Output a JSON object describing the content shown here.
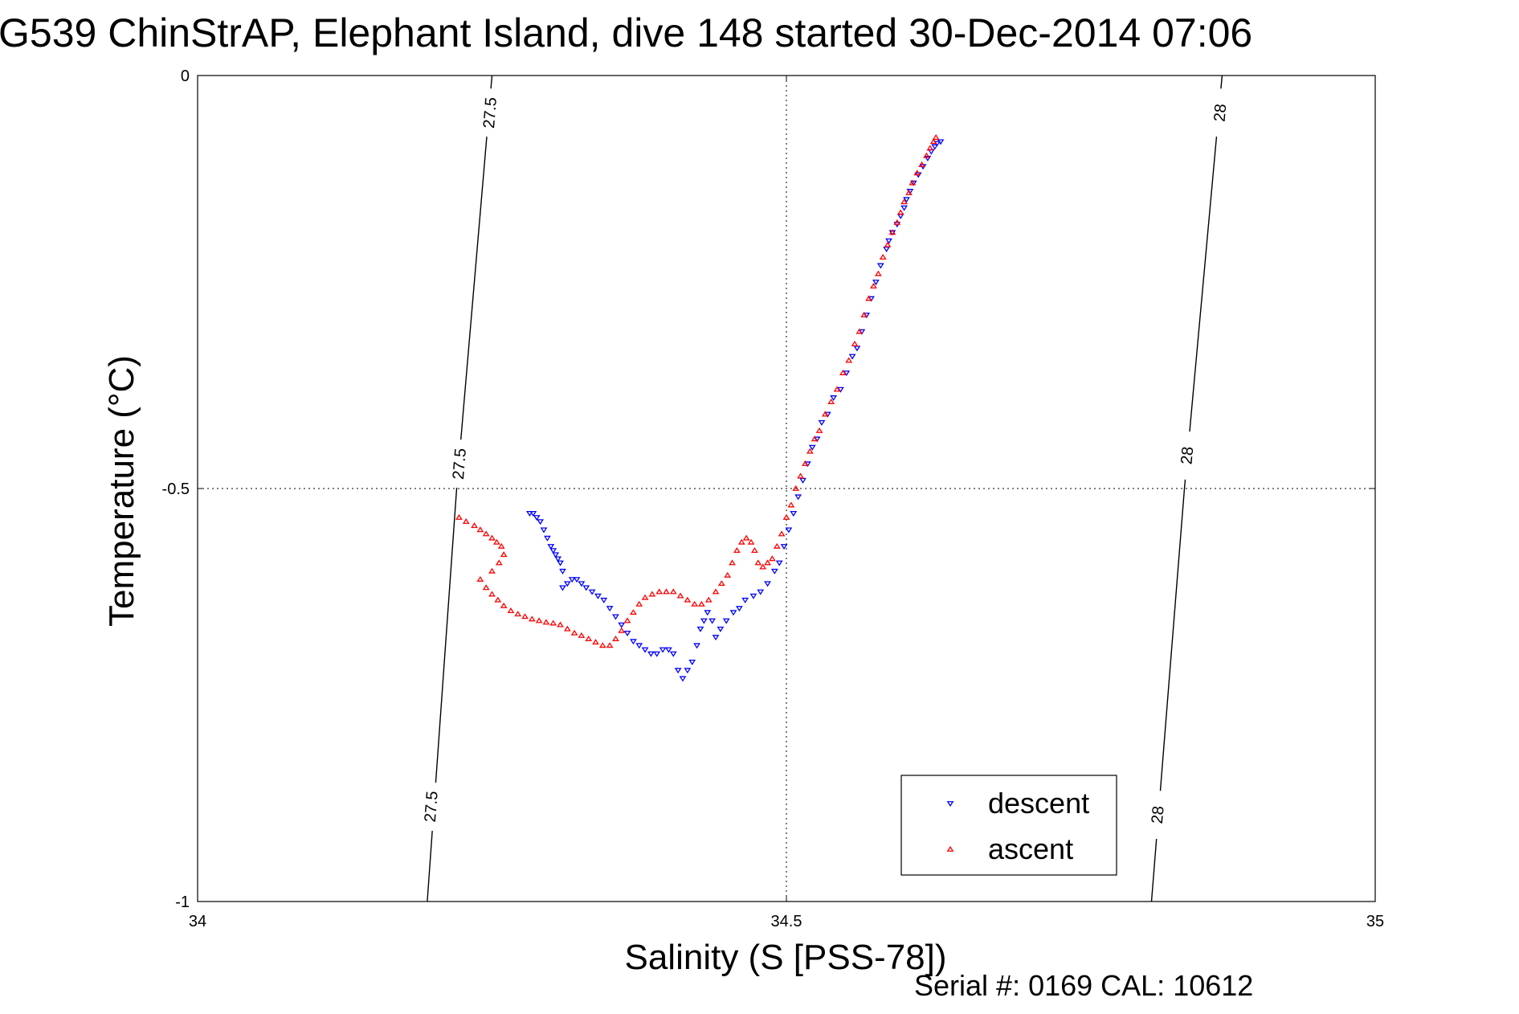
{
  "title": "G539 ChinStrAP, Elephant Island, dive 148 started 30-Dec-2014 07:06",
  "footer": "Serial #: 0169 CAL: 10612",
  "chart_data": {
    "type": "scatter",
    "title": "G539 ChinStrAP, Elephant Island, dive 148 started 30-Dec-2014 07:06",
    "xlabel": "Salinity (S [PSS-78])",
    "ylabel": "Temperature (°C)",
    "xlim": [
      34,
      35
    ],
    "ylim": [
      -1,
      0
    ],
    "x_ticks": [
      34,
      34.5,
      35
    ],
    "x_tick_labels": [
      "34",
      "34.5",
      "35"
    ],
    "y_ticks": [
      0,
      -0.5,
      -1
    ],
    "y_tick_labels": [
      "0",
      "-0.5",
      "-1"
    ],
    "grid": true,
    "legend_position": "bottom-right",
    "density_contours": [
      {
        "label": "27.5",
        "points": [
          [
            34.25,
            0
          ],
          [
            34.22,
            -0.5
          ],
          [
            34.195,
            -1
          ]
        ],
        "label_positions": [
          [
            34.248,
            -0.045
          ],
          [
            34.222,
            -0.47
          ],
          [
            34.198,
            -0.885
          ]
        ]
      },
      {
        "label": "28",
        "points": [
          [
            34.87,
            0
          ],
          [
            34.838,
            -0.5
          ],
          [
            34.81,
            -1
          ]
        ],
        "label_positions": [
          [
            34.868,
            -0.045
          ],
          [
            34.84,
            -0.46
          ],
          [
            34.815,
            -0.895
          ]
        ]
      }
    ],
    "series": [
      {
        "name": "descent",
        "color": "#0000ff",
        "marker": "triangle-down",
        "points": [
          [
            34.631,
            -0.08
          ],
          [
            34.628,
            -0.082
          ],
          [
            34.626,
            -0.086
          ],
          [
            34.623,
            -0.092
          ],
          [
            34.62,
            -0.1
          ],
          [
            34.616,
            -0.11
          ],
          [
            34.612,
            -0.12
          ],
          [
            34.608,
            -0.13
          ],
          [
            34.605,
            -0.14
          ],
          [
            34.602,
            -0.15
          ],
          [
            34.6,
            -0.16
          ],
          [
            34.597,
            -0.17
          ],
          [
            34.594,
            -0.18
          ],
          [
            34.59,
            -0.19
          ],
          [
            34.587,
            -0.2
          ],
          [
            34.585,
            -0.21
          ],
          [
            34.58,
            -0.23
          ],
          [
            34.576,
            -0.25
          ],
          [
            34.572,
            -0.27
          ],
          [
            34.568,
            -0.29
          ],
          [
            34.564,
            -0.31
          ],
          [
            34.56,
            -0.33
          ],
          [
            34.556,
            -0.34
          ],
          [
            34.551,
            -0.36
          ],
          [
            34.546,
            -0.38
          ],
          [
            34.54,
            -0.39
          ],
          [
            34.535,
            -0.41
          ],
          [
            34.53,
            -0.42
          ],
          [
            34.526,
            -0.44
          ],
          [
            34.522,
            -0.45
          ],
          [
            34.518,
            -0.47
          ],
          [
            34.514,
            -0.49
          ],
          [
            34.51,
            -0.51
          ],
          [
            34.506,
            -0.53
          ],
          [
            34.502,
            -0.55
          ],
          [
            34.498,
            -0.57
          ],
          [
            34.494,
            -0.59
          ],
          [
            34.49,
            -0.6
          ],
          [
            34.484,
            -0.615
          ],
          [
            34.478,
            -0.625
          ],
          [
            34.472,
            -0.63
          ],
          [
            34.465,
            -0.635
          ],
          [
            34.46,
            -0.645
          ],
          [
            34.455,
            -0.65
          ],
          [
            34.449,
            -0.66
          ],
          [
            34.444,
            -0.67
          ],
          [
            34.44,
            -0.68
          ],
          [
            34.437,
            -0.66
          ],
          [
            34.433,
            -0.65
          ],
          [
            34.43,
            -0.66
          ],
          [
            34.427,
            -0.67
          ],
          [
            34.424,
            -0.69
          ],
          [
            34.42,
            -0.71
          ],
          [
            34.416,
            -0.72
          ],
          [
            34.412,
            -0.73
          ],
          [
            34.408,
            -0.72
          ],
          [
            34.404,
            -0.7
          ],
          [
            34.4,
            -0.695
          ],
          [
            34.395,
            -0.695
          ],
          [
            34.39,
            -0.7
          ],
          [
            34.385,
            -0.7
          ],
          [
            34.38,
            -0.695
          ],
          [
            34.375,
            -0.69
          ],
          [
            34.37,
            -0.685
          ],
          [
            34.365,
            -0.675
          ],
          [
            34.36,
            -0.665
          ],
          [
            34.355,
            -0.655
          ],
          [
            34.35,
            -0.645
          ],
          [
            34.345,
            -0.635
          ],
          [
            34.34,
            -0.63
          ],
          [
            34.335,
            -0.625
          ],
          [
            34.33,
            -0.62
          ],
          [
            34.326,
            -0.615
          ],
          [
            34.322,
            -0.61
          ],
          [
            34.318,
            -0.61
          ],
          [
            34.314,
            -0.615
          ],
          [
            34.31,
            -0.62
          ],
          [
            34.31,
            -0.6
          ],
          [
            34.308,
            -0.59
          ],
          [
            34.306,
            -0.585
          ],
          [
            34.304,
            -0.58
          ],
          [
            34.302,
            -0.575
          ],
          [
            34.3,
            -0.57
          ],
          [
            34.297,
            -0.56
          ],
          [
            34.294,
            -0.55
          ],
          [
            34.291,
            -0.54
          ],
          [
            34.288,
            -0.535
          ],
          [
            34.285,
            -0.53
          ],
          [
            34.282,
            -0.53
          ]
        ]
      },
      {
        "name": "ascent",
        "color": "#ff0000",
        "marker": "triangle-up",
        "points": [
          [
            34.627,
            -0.075
          ],
          [
            34.625,
            -0.08
          ],
          [
            34.622,
            -0.088
          ],
          [
            34.619,
            -0.097
          ],
          [
            34.615,
            -0.108
          ],
          [
            34.611,
            -0.118
          ],
          [
            34.607,
            -0.13
          ],
          [
            34.604,
            -0.142
          ],
          [
            34.6,
            -0.153
          ],
          [
            34.597,
            -0.166
          ],
          [
            34.594,
            -0.178
          ],
          [
            34.59,
            -0.19
          ],
          [
            34.586,
            -0.205
          ],
          [
            34.582,
            -0.22
          ],
          [
            34.578,
            -0.24
          ],
          [
            34.574,
            -0.255
          ],
          [
            34.57,
            -0.27
          ],
          [
            34.566,
            -0.29
          ],
          [
            34.562,
            -0.31
          ],
          [
            34.558,
            -0.325
          ],
          [
            34.553,
            -0.345
          ],
          [
            34.548,
            -0.36
          ],
          [
            34.543,
            -0.38
          ],
          [
            34.538,
            -0.395
          ],
          [
            34.533,
            -0.41
          ],
          [
            34.528,
            -0.43
          ],
          [
            34.524,
            -0.44
          ],
          [
            34.52,
            -0.455
          ],
          [
            34.516,
            -0.47
          ],
          [
            34.512,
            -0.485
          ],
          [
            34.508,
            -0.5
          ],
          [
            34.504,
            -0.52
          ],
          [
            34.5,
            -0.535
          ],
          [
            34.496,
            -0.555
          ],
          [
            34.492,
            -0.57
          ],
          [
            34.488,
            -0.585
          ],
          [
            34.484,
            -0.59
          ],
          [
            34.48,
            -0.595
          ],
          [
            34.476,
            -0.59
          ],
          [
            34.473,
            -0.575
          ],
          [
            34.47,
            -0.565
          ],
          [
            34.466,
            -0.56
          ],
          [
            34.462,
            -0.565
          ],
          [
            34.458,
            -0.575
          ],
          [
            34.454,
            -0.59
          ],
          [
            34.45,
            -0.605
          ],
          [
            34.445,
            -0.615
          ],
          [
            34.44,
            -0.625
          ],
          [
            34.434,
            -0.635
          ],
          [
            34.428,
            -0.64
          ],
          [
            34.422,
            -0.64
          ],
          [
            34.416,
            -0.635
          ],
          [
            34.41,
            -0.63
          ],
          [
            34.404,
            -0.625
          ],
          [
            34.398,
            -0.625
          ],
          [
            34.392,
            -0.625
          ],
          [
            34.386,
            -0.628
          ],
          [
            34.38,
            -0.632
          ],
          [
            34.375,
            -0.64
          ],
          [
            34.37,
            -0.65
          ],
          [
            34.365,
            -0.66
          ],
          [
            34.36,
            -0.672
          ],
          [
            34.355,
            -0.682
          ],
          [
            34.35,
            -0.69
          ],
          [
            34.344,
            -0.69
          ],
          [
            34.338,
            -0.686
          ],
          [
            34.332,
            -0.682
          ],
          [
            34.326,
            -0.678
          ],
          [
            34.32,
            -0.675
          ],
          [
            34.314,
            -0.67
          ],
          [
            34.308,
            -0.665
          ],
          [
            34.302,
            -0.663
          ],
          [
            34.296,
            -0.662
          ],
          [
            34.29,
            -0.66
          ],
          [
            34.284,
            -0.658
          ],
          [
            34.278,
            -0.655
          ],
          [
            34.272,
            -0.652
          ],
          [
            34.266,
            -0.648
          ],
          [
            34.26,
            -0.642
          ],
          [
            34.255,
            -0.635
          ],
          [
            34.25,
            -0.628
          ],
          [
            34.245,
            -0.62
          ],
          [
            34.24,
            -0.61
          ],
          [
            34.25,
            -0.6
          ],
          [
            34.256,
            -0.59
          ],
          [
            34.26,
            -0.58
          ],
          [
            34.258,
            -0.57
          ],
          [
            34.254,
            -0.565
          ],
          [
            34.25,
            -0.56
          ],
          [
            34.245,
            -0.555
          ],
          [
            34.24,
            -0.55
          ],
          [
            34.235,
            -0.545
          ],
          [
            34.228,
            -0.54
          ],
          [
            34.222,
            -0.535
          ]
        ]
      }
    ]
  }
}
